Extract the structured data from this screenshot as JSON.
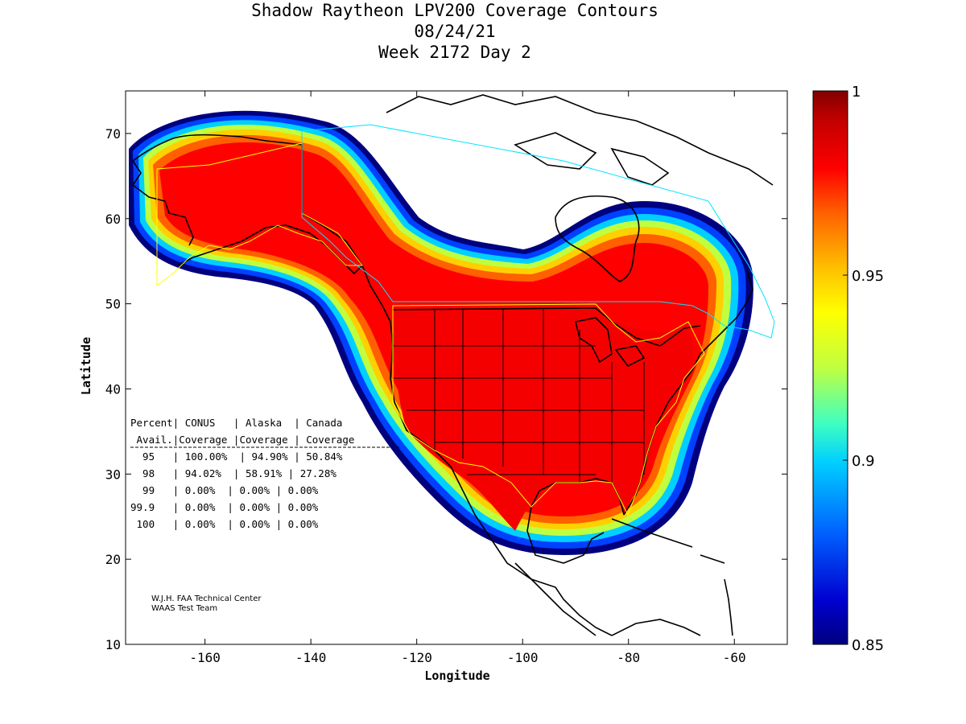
{
  "title": {
    "line1": "Shadow Raytheon LPV200 Coverage Contours",
    "line2": "08/24/21",
    "line3": "Week 2172 Day 2"
  },
  "axes": {
    "xlabel": "Longitude",
    "ylabel": "Latitude",
    "x_ticks": [
      "-160",
      "-140",
      "-120",
      "-100",
      "-80",
      "-60"
    ],
    "y_ticks": [
      "10",
      "20",
      "30",
      "40",
      "50",
      "60",
      "70"
    ]
  },
  "colorbar": {
    "labels": [
      "1",
      "0.95",
      "0.9",
      "0.85"
    ],
    "colors": [
      "#800000",
      "#ff0000",
      "#ff8000",
      "#ffff00",
      "#00ffff",
      "#0080ff",
      "#0000c8",
      "#00007f"
    ]
  },
  "table": {
    "header1": "Percent| CONUS   | Alaska  | Canada",
    "header2": " Avail.|Coverage |Coverage | Coverage",
    "rows": [
      "  95   | 100.00%  | 94.90% | 50.84%",
      "  98   | 94.02%  | 58.91% | 27.28%",
      "  99   | 0.00%  | 0.00% | 0.00%",
      "99.9   | 0.00%  | 0.00% | 0.00%",
      " 100   | 0.00%  | 0.00% | 0.00%"
    ]
  },
  "credit": {
    "line1": "W.J.H. FAA Technical Center",
    "line2": "WAAS Test Team"
  },
  "chart_data": {
    "type": "heatmap",
    "title": "Shadow Raytheon LPV200 Coverage Contours",
    "subtitle": [
      "08/24/21",
      "Week 2172 Day 2"
    ],
    "xlabel": "Longitude",
    "ylabel": "Latitude",
    "xlim": [
      -175,
      -50
    ],
    "ylim": [
      10,
      75
    ],
    "colorbar_range": [
      0.85,
      1
    ],
    "coverage": [
      {
        "percent_avail": "95",
        "conus": "100.00%",
        "alaska": "94.90%",
        "canada": "50.84%"
      },
      {
        "percent_avail": "98",
        "conus": "94.02%",
        "alaska": "58.91%",
        "canada": "27.28%"
      },
      {
        "percent_avail": "99",
        "conus": "0.00%",
        "alaska": "0.00%",
        "canada": "0.00%"
      },
      {
        "percent_avail": "99.9",
        "conus": "0.00%",
        "alaska": "0.00%",
        "canada": "0.00%"
      },
      {
        "percent_avail": "100",
        "conus": "0.00%",
        "alaska": "0.00%",
        "canada": "0.00%"
      }
    ]
  }
}
